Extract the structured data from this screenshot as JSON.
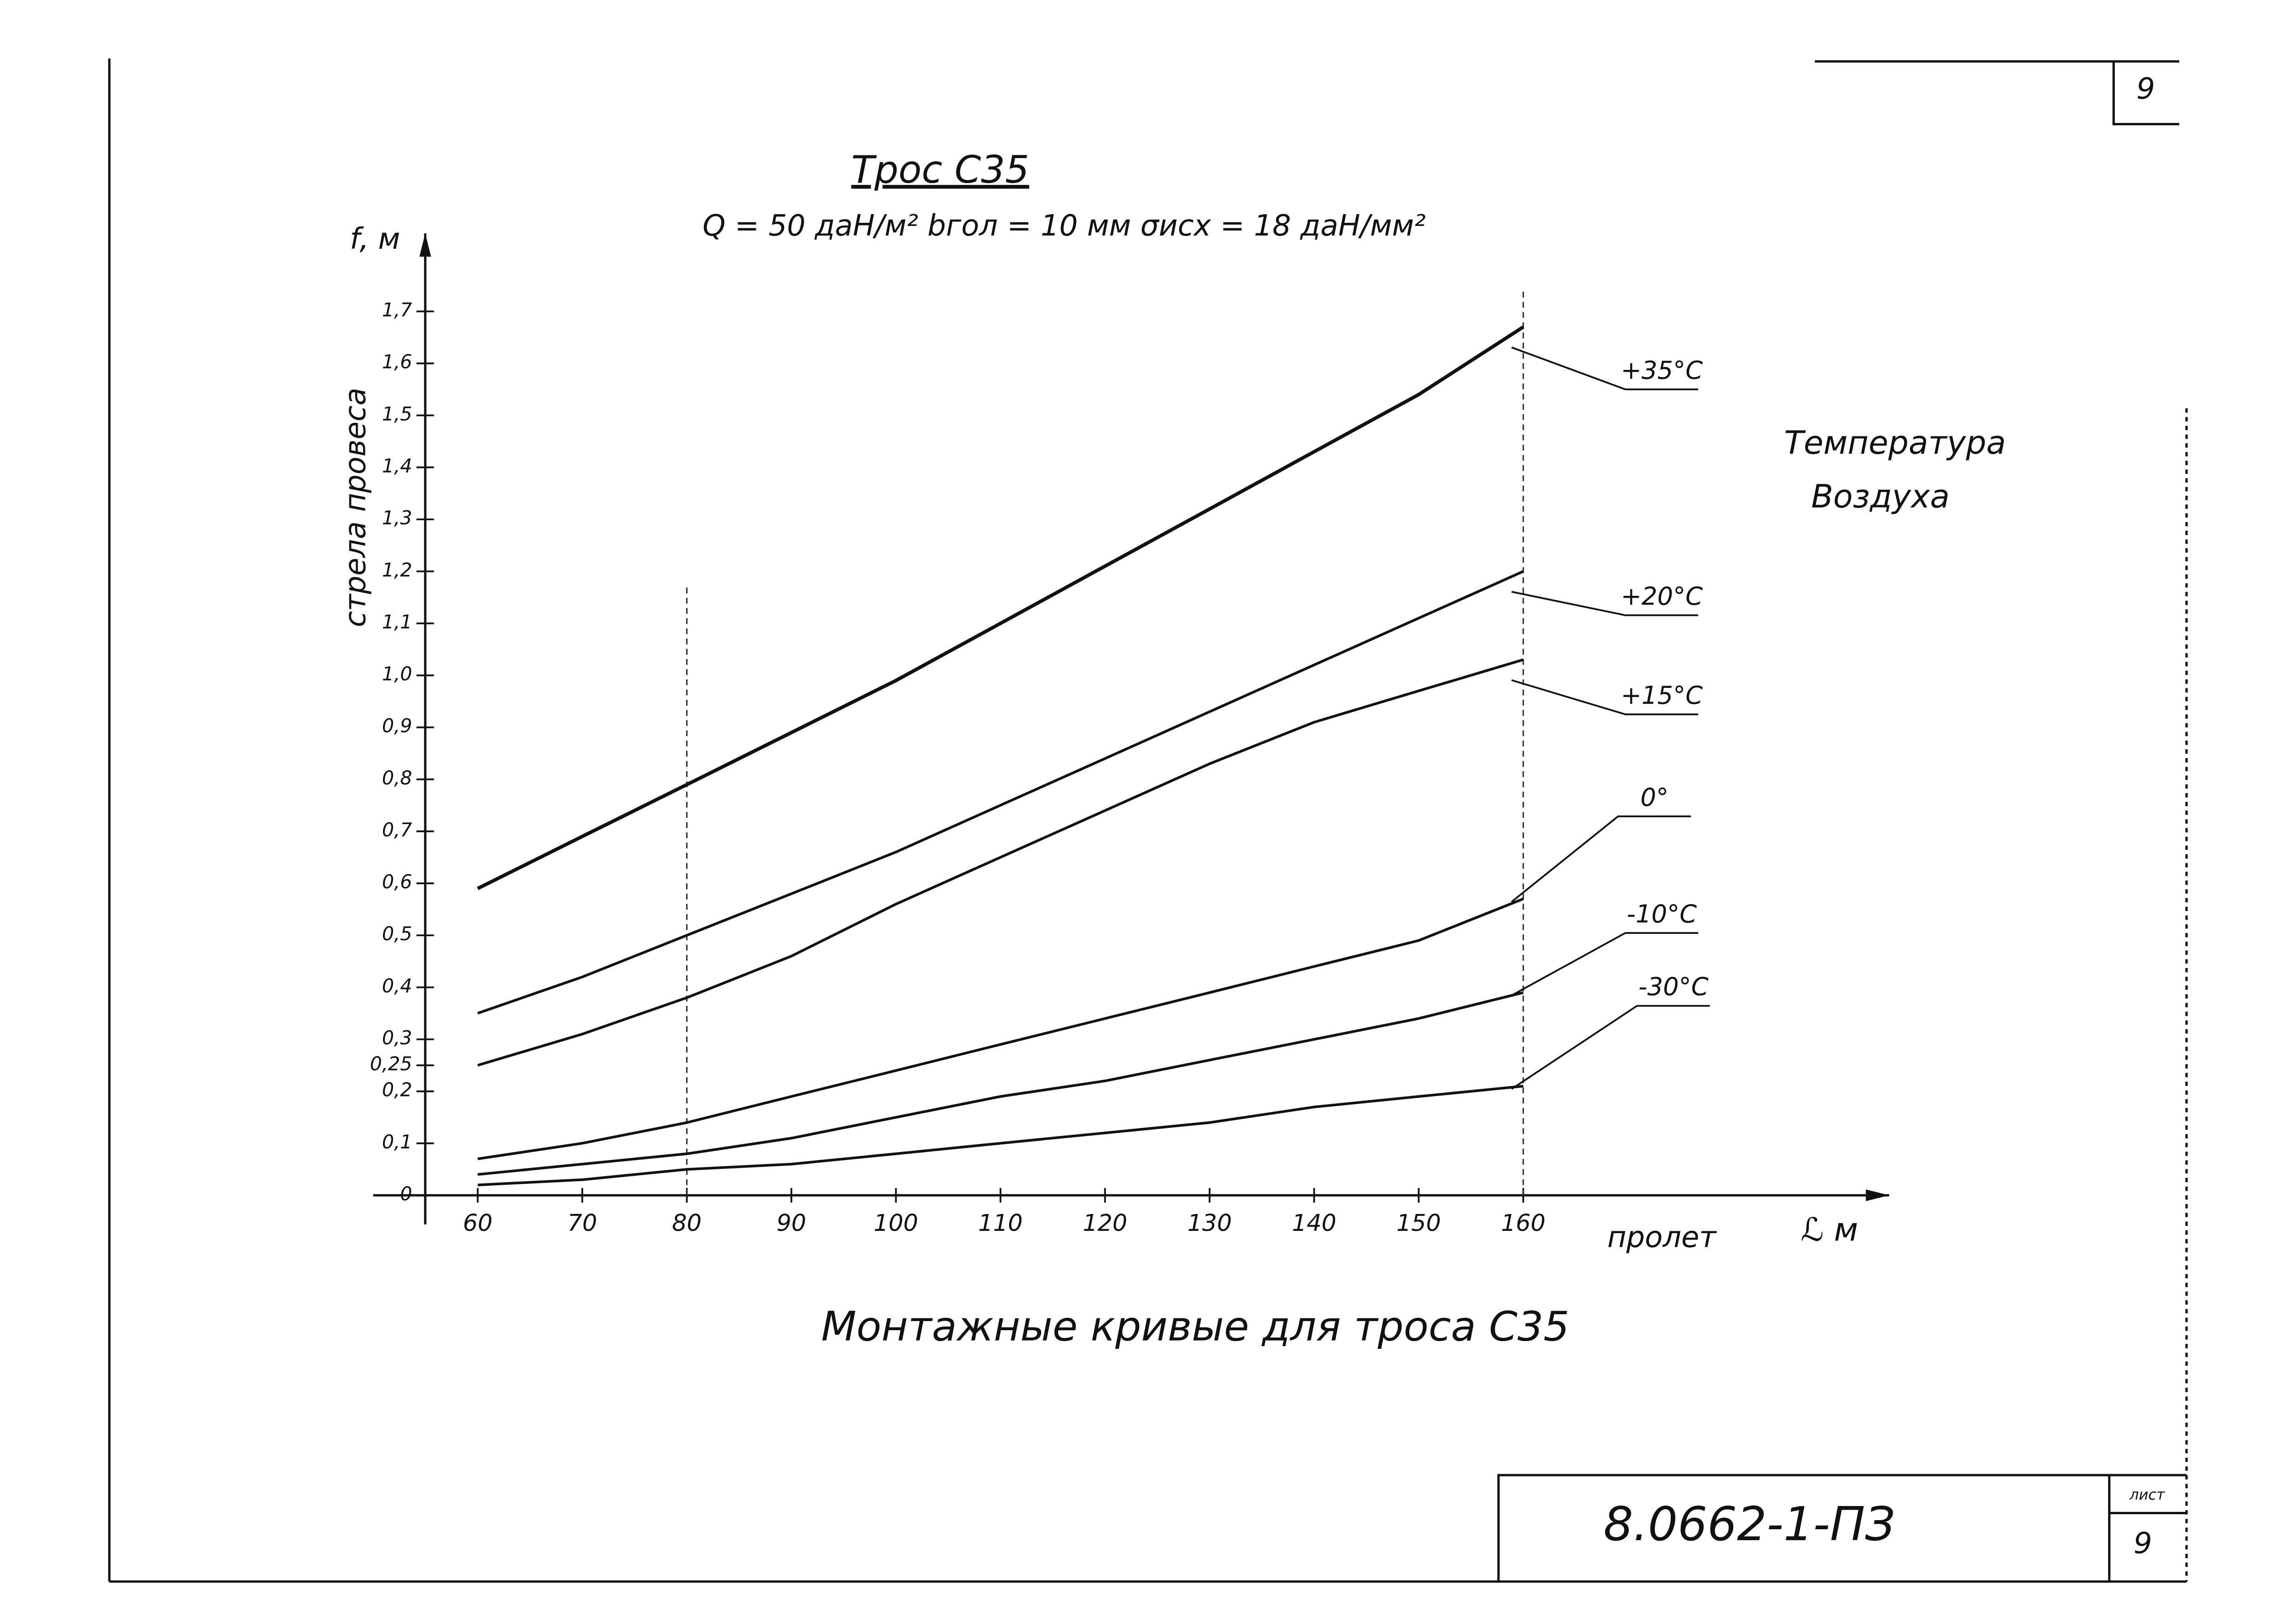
{
  "chart_data": {
    "type": "line",
    "title": "Трос С35",
    "subtitle": "Q = 50 даН/м²   bгол = 10 мм   σисх = 18 даН/мм²",
    "y_label": "f, м",
    "y_title": "стрела провеса",
    "x_label": "пролет",
    "x_unit": "ℒ м",
    "legend_title": [
      "Температура",
      "Воздуха"
    ],
    "caption": "Монтажные кривые для троса С35",
    "x": [
      60,
      70,
      80,
      90,
      100,
      110,
      120,
      130,
      140,
      150,
      160
    ],
    "series": [
      {
        "name": "+35°C",
        "color": "#111111",
        "values": [
          0.59,
          0.69,
          0.79,
          0.89,
          0.99,
          1.1,
          1.21,
          1.32,
          1.43,
          1.54,
          1.67
        ]
      },
      {
        "name": "+20°C",
        "color": "#111111",
        "values": [
          0.35,
          0.42,
          0.5,
          0.58,
          0.66,
          0.75,
          0.84,
          0.93,
          1.02,
          1.11,
          1.2
        ]
      },
      {
        "name": "+15°C",
        "color": "#111111",
        "values": [
          0.25,
          0.31,
          0.38,
          0.46,
          0.56,
          0.65,
          0.74,
          0.83,
          0.91,
          0.97,
          1.03
        ]
      },
      {
        "name": "0°",
        "color": "#111111",
        "values": [
          0.07,
          0.1,
          0.14,
          0.19,
          0.24,
          0.29,
          0.34,
          0.39,
          0.44,
          0.49,
          0.57
        ]
      },
      {
        "name": "-10°C",
        "color": "#111111",
        "values": [
          0.04,
          0.06,
          0.08,
          0.11,
          0.15,
          0.19,
          0.22,
          0.26,
          0.3,
          0.34,
          0.39
        ]
      },
      {
        "name": "-30°C",
        "color": "#111111",
        "values": [
          0.02,
          0.03,
          0.05,
          0.06,
          0.08,
          0.1,
          0.12,
          0.14,
          0.17,
          0.19,
          0.21
        ]
      }
    ],
    "xlim": [
      50,
      195
    ],
    "xticks": [
      60,
      70,
      80,
      90,
      100,
      110,
      120,
      130,
      140,
      150,
      160
    ],
    "ylim": [
      0,
      1.85
    ],
    "yticks": [
      0,
      {
        "value": 0.1,
        "label": "0,1"
      },
      {
        "value": 0.2,
        "label": "0,2"
      },
      {
        "value": 0.25,
        "label": "0,25"
      },
      {
        "value": 0.3,
        "label": "0,3"
      },
      {
        "value": 0.4,
        "label": "0,4"
      },
      {
        "value": 0.5,
        "label": "0,5"
      },
      {
        "value": 0.6,
        "label": "0,6"
      },
      {
        "value": 0.7,
        "label": "0,7"
      },
      {
        "value": 0.8,
        "label": "0,8"
      },
      {
        "value": 0.9,
        "label": "0,9"
      },
      {
        "value": 1.0,
        "label": "1,0"
      },
      {
        "value": 1.1,
        "label": "1,1"
      },
      {
        "value": 1.2,
        "label": "1,2"
      },
      {
        "value": 1.3,
        "label": "1,3"
      },
      {
        "value": 1.4,
        "label": "1,4"
      },
      {
        "value": 1.5,
        "label": "1,5"
      },
      {
        "value": 1.6,
        "label": "1,6"
      },
      {
        "value": 1.7,
        "label": "1,7"
      }
    ],
    "guides_x": [
      80,
      160
    ]
  },
  "page_number": "9",
  "stamp": {
    "code": "8.0662-1-ПЗ",
    "sheet_label": "лист",
    "sheet": "9"
  }
}
